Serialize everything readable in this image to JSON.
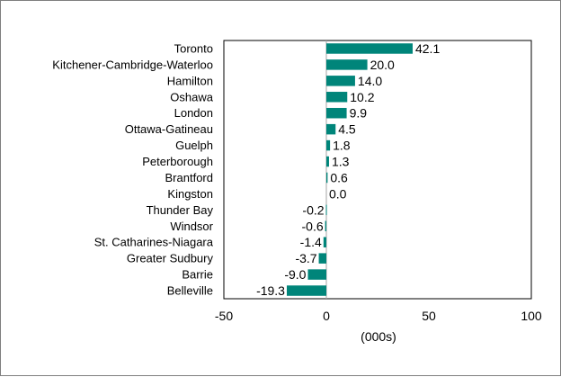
{
  "chart_data": {
    "type": "bar",
    "orientation": "horizontal",
    "categories": [
      "Toronto",
      "Kitchener-Cambridge-Waterloo",
      "Hamilton",
      "Oshawa",
      "London",
      "Ottawa-Gatineau",
      "Guelph",
      "Peterborough",
      "Brantford",
      "Kingston",
      "Thunder Bay",
      "Windsor",
      "St. Catharines-Niagara",
      "Greater Sudbury",
      "Barrie",
      "Belleville"
    ],
    "values": [
      42.1,
      20.0,
      14.0,
      10.2,
      9.9,
      4.5,
      1.8,
      1.3,
      0.6,
      0.0,
      -0.2,
      -0.6,
      -1.4,
      -3.7,
      -9.0,
      -19.3
    ],
    "value_labels": [
      "42.1",
      "20.0",
      "14.0",
      "10.2",
      "9.9",
      "4.5",
      "1.8",
      "1.3",
      "0.6",
      "0.0",
      "-0.2",
      "-0.6",
      "-1.4",
      "-3.7",
      "-9.0",
      "-19.3"
    ],
    "xlim": [
      -50,
      100
    ],
    "xticks": [
      -50,
      0,
      50,
      100
    ],
    "xtick_labels": [
      "-50",
      "0",
      "50",
      "100"
    ],
    "xlabel": "(000s)",
    "ylabel": "",
    "title": "",
    "grid": false,
    "legend": "none",
    "bar_color": "#00857a"
  }
}
